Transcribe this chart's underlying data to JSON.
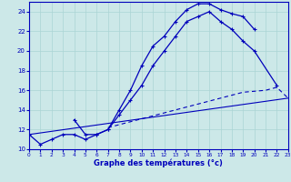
{
  "background_color": "#cce8e8",
  "grid_color": "#aad4d4",
  "line_color": "#0000bb",
  "xlabel": "Graphe des températures (°c)",
  "xlim": [
    0,
    23
  ],
  "ylim": [
    10,
    25
  ],
  "yticks": [
    10,
    12,
    14,
    16,
    18,
    20,
    22,
    24
  ],
  "xticks": [
    0,
    1,
    2,
    3,
    4,
    5,
    6,
    7,
    8,
    9,
    10,
    11,
    12,
    13,
    14,
    15,
    16,
    17,
    18,
    19,
    20,
    21,
    22,
    23
  ],
  "curve1_x": [
    0,
    1,
    2,
    3,
    4,
    5,
    6,
    7,
    8,
    9,
    10,
    11,
    12,
    13,
    14,
    15,
    16,
    17,
    18,
    19,
    20
  ],
  "curve1_y": [
    11.5,
    10.5,
    11.0,
    11.5,
    11.5,
    11.0,
    11.5,
    12.0,
    14.0,
    16.0,
    18.5,
    20.5,
    21.5,
    23.0,
    24.2,
    24.8,
    24.8,
    24.2,
    23.8,
    23.5,
    22.2
  ],
  "curve2_x": [
    4,
    5,
    6,
    7,
    8,
    9,
    10,
    11,
    12,
    13,
    14,
    15,
    16,
    17,
    18,
    19,
    20,
    22
  ],
  "curve2_y": [
    13.0,
    11.5,
    11.5,
    12.0,
    13.5,
    15.0,
    16.5,
    18.5,
    20.0,
    21.5,
    23.0,
    23.5,
    24.0,
    23.0,
    22.2,
    21.0,
    20.0,
    16.5
  ],
  "curve3_x": [
    7,
    8,
    9,
    10,
    11,
    12,
    13,
    14,
    15,
    16,
    17,
    18,
    19,
    20,
    21,
    22,
    23
  ],
  "curve3_y": [
    12.2,
    12.5,
    12.8,
    13.1,
    13.4,
    13.7,
    14.0,
    14.3,
    14.6,
    14.9,
    15.2,
    15.5,
    15.8,
    15.9,
    16.0,
    16.3,
    15.2
  ],
  "curve4_x": [
    0,
    23
  ],
  "curve4_y": [
    11.5,
    15.2
  ]
}
